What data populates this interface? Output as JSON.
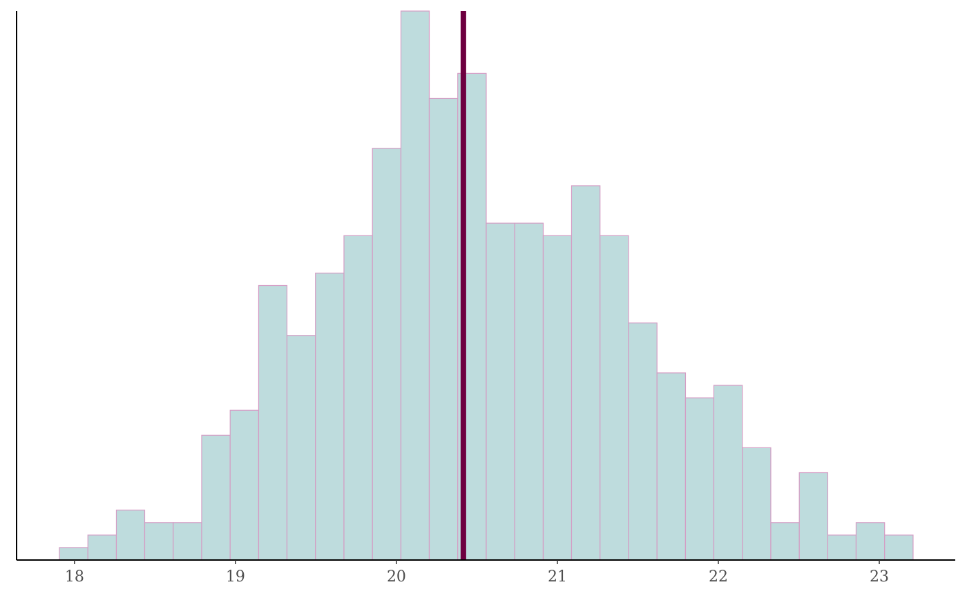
{
  "chart_data": {
    "type": "histogram",
    "bins": [
      17.906,
      18.083,
      18.26,
      18.436,
      18.613,
      18.79,
      18.967,
      19.144,
      19.32,
      19.497,
      19.674,
      19.851,
      20.028,
      20.204,
      20.381,
      20.558,
      20.735,
      20.912,
      21.088,
      21.265,
      21.442,
      21.619,
      21.796,
      21.972,
      22.149,
      22.326,
      22.503,
      22.68,
      22.856,
      23.033,
      23.21
    ],
    "values": [
      1,
      2,
      4,
      3,
      3,
      10,
      12,
      22,
      18,
      23,
      26,
      33,
      44,
      37,
      39,
      27,
      27,
      26,
      30,
      26,
      19,
      15,
      13,
      14,
      9,
      3,
      7,
      2,
      3,
      2
    ],
    "color": "#bedcdd",
    "edge_color": "#d49cc4",
    "xlim": [
      17.64,
      23.472
    ],
    "xticks": [
      18,
      19,
      20,
      21,
      22,
      23
    ],
    "ylim": [
      0,
      44
    ],
    "vline": {
      "x": 20.416,
      "color": "#6e0040"
    }
  }
}
